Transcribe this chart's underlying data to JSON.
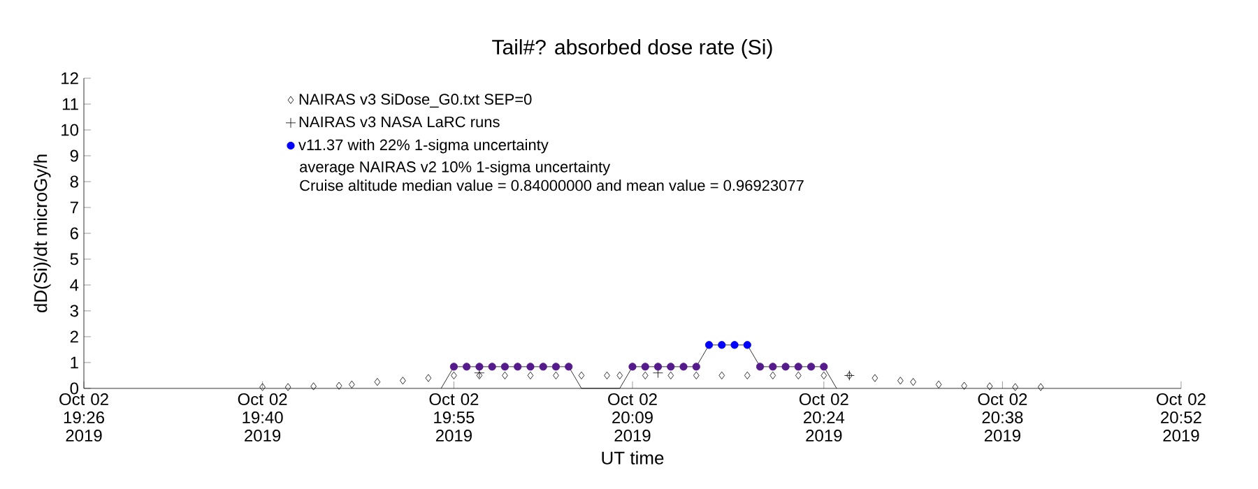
{
  "chart_data": {
    "type": "scatter",
    "title": "Tail#? absorbed dose rate (Si)",
    "xlabel": "UT time",
    "ylabel": "dD(Si)/dt microGy/h",
    "xlim": [
      "2019-10-02T19:26",
      "2019-10-02T20:52"
    ],
    "ylim": [
      0,
      12
    ],
    "xticks": [
      {
        "value": "2019-10-02T19:26",
        "label": "Oct 02 19:26 2019"
      },
      {
        "value": "2019-10-02T19:40",
        "label": "Oct 02 19:40 2019"
      },
      {
        "value": "2019-10-02T19:55",
        "label": "Oct 02 19:55 2019"
      },
      {
        "value": "2019-10-02T20:09",
        "label": "Oct 02 20:09 2019"
      },
      {
        "value": "2019-10-02T20:24",
        "label": "Oct 02 20:24 2019"
      },
      {
        "value": "2019-10-02T20:38",
        "label": "Oct 02 20:38 2019"
      },
      {
        "value": "2019-10-02T20:52",
        "label": "Oct 02 20:52 2019"
      }
    ],
    "yticks": [
      0,
      1,
      2,
      3,
      4,
      5,
      6,
      7,
      8,
      9,
      10,
      11,
      12
    ],
    "legend": "top left",
    "series": [
      {
        "type": "line",
        "color": "#000000",
        "marker": "none",
        "x": [
          "2019-10-02T19:54",
          "2019-10-02T19:55",
          "2019-10-02T20:04",
          "2019-10-02T20:05",
          "2019-10-02T20:08",
          "2019-10-02T20:09",
          "2019-10-02T20:14",
          "2019-10-02T20:15",
          "2019-10-02T20:18",
          "2019-10-02T20:19",
          "2019-10-02T20:24",
          "2019-10-02T20:25"
        ],
        "values": [
          0,
          0.84,
          0.84,
          0,
          0,
          0.84,
          0.84,
          1.68,
          1.68,
          0.84,
          0.84,
          0
        ]
      },
      {
        "name": "NAIRAS v3 SiDose_G0.txt SEP=0",
        "color": "#000000",
        "marker": "diamond",
        "x": [
          "2019-10-02T19:40",
          "2019-10-02T19:42",
          "2019-10-02T19:44",
          "2019-10-02T19:46",
          "2019-10-02T19:47",
          "2019-10-02T19:49",
          "2019-10-02T19:51",
          "2019-10-02T19:53",
          "2019-10-02T19:55",
          "2019-10-02T19:57",
          "2019-10-02T19:59",
          "2019-10-02T20:01",
          "2019-10-02T20:03",
          "2019-10-02T20:05",
          "2019-10-02T20:07",
          "2019-10-02T20:08",
          "2019-10-02T20:10",
          "2019-10-02T20:12",
          "2019-10-02T20:14",
          "2019-10-02T20:16",
          "2019-10-02T20:18",
          "2019-10-02T20:20",
          "2019-10-02T20:22",
          "2019-10-02T20:24",
          "2019-10-02T20:26",
          "2019-10-02T20:28",
          "2019-10-02T20:30",
          "2019-10-02T20:31",
          "2019-10-02T20:33",
          "2019-10-02T20:35",
          "2019-10-02T20:37",
          "2019-10-02T20:39",
          "2019-10-02T20:41"
        ],
        "values": [
          0.05,
          0.05,
          0.08,
          0.1,
          0.15,
          0.25,
          0.3,
          0.4,
          0.5,
          0.5,
          0.5,
          0.5,
          0.5,
          0.5,
          0.5,
          0.5,
          0.5,
          0.5,
          0.5,
          0.5,
          0.5,
          0.5,
          0.5,
          0.5,
          0.5,
          0.4,
          0.3,
          0.25,
          0.15,
          0.1,
          0.08,
          0.05,
          0.05
        ]
      },
      {
        "name": "NAIRAS v3 NASA LaRC runs",
        "color": "#000000",
        "marker": "cross",
        "x": [
          "2019-10-02T19:57",
          "2019-10-02T20:11",
          "2019-10-02T20:26"
        ],
        "values": [
          0.6,
          0.6,
          0.5
        ]
      },
      {
        "name": "v11.37 with 22% 1-sigma uncertainty",
        "color": "#0000ff",
        "marker": "circle",
        "x": [
          "2019-10-02T20:15",
          "2019-10-02T20:16",
          "2019-10-02T20:17",
          "2019-10-02T20:18"
        ],
        "values": [
          1.68,
          1.68,
          1.68,
          1.68
        ]
      },
      {
        "color": "#551a8b",
        "marker": "circle",
        "x": [
          "2019-10-02T19:55",
          "2019-10-02T19:56",
          "2019-10-02T19:57",
          "2019-10-02T19:58",
          "2019-10-02T19:59",
          "2019-10-02T20:00",
          "2019-10-02T20:01",
          "2019-10-02T20:02",
          "2019-10-02T20:03",
          "2019-10-02T20:04",
          "2019-10-02T20:09",
          "2019-10-02T20:10",
          "2019-10-02T20:11",
          "2019-10-02T20:12",
          "2019-10-02T20:13",
          "2019-10-02T20:14",
          "2019-10-02T20:19",
          "2019-10-02T20:20",
          "2019-10-02T20:21",
          "2019-10-02T20:22",
          "2019-10-02T20:23",
          "2019-10-02T20:24"
        ],
        "values": [
          0.84,
          0.84,
          0.84,
          0.84,
          0.84,
          0.84,
          0.84,
          0.84,
          0.84,
          0.84,
          0.84,
          0.84,
          0.84,
          0.84,
          0.84,
          0.84,
          0.84,
          0.84,
          0.84,
          0.84,
          0.84,
          0.84
        ]
      }
    ],
    "annotations": [
      "average NAIRAS v2 10% 1-sigma uncertainty",
      "Cruise altitude median value = 0.84000000 and mean value = 0.96923077"
    ]
  }
}
